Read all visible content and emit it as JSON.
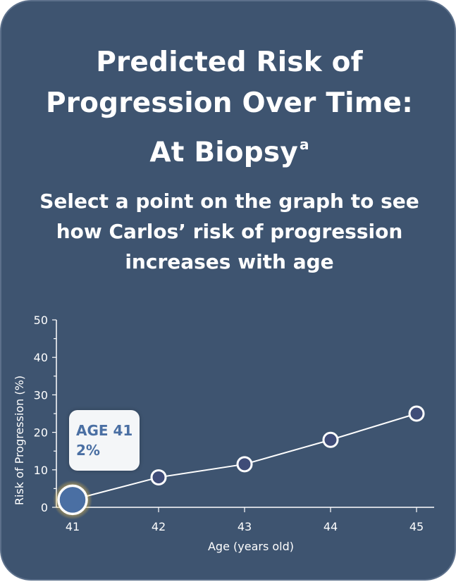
{
  "title_main": "Predicted Risk of Progression Over Time: At Biopsy",
  "title_superscript": "a",
  "subtitle": "Select a point on the graph to see how Carlos’ risk of progression increases with age",
  "tooltip": {
    "age_line": "AGE 41",
    "value_line": "2%"
  },
  "colors": {
    "card_bg": "#3e5470",
    "point_fill": "#3f4c78",
    "selected_point_fill": "#4a6fa3",
    "selected_glow": "#f5c54a",
    "line": "#ffffff"
  },
  "chart_data": {
    "type": "line",
    "x": [
      41,
      42,
      43,
      44,
      45
    ],
    "y": [
      2,
      8,
      11.5,
      18,
      25
    ],
    "xlabel": "Age (years old)",
    "ylabel": "Risk of Progression (%)",
    "x_tick_labels": [
      "41",
      "42",
      "43",
      "44",
      "45"
    ],
    "y_ticks": [
      0,
      10,
      20,
      30,
      40,
      50
    ],
    "y_tick_labels": [
      "0",
      "10",
      "20",
      "30",
      "40",
      "50"
    ],
    "ylim": [
      0,
      50
    ],
    "xlim": [
      41,
      45
    ],
    "grid": false,
    "selected_index": 0
  }
}
